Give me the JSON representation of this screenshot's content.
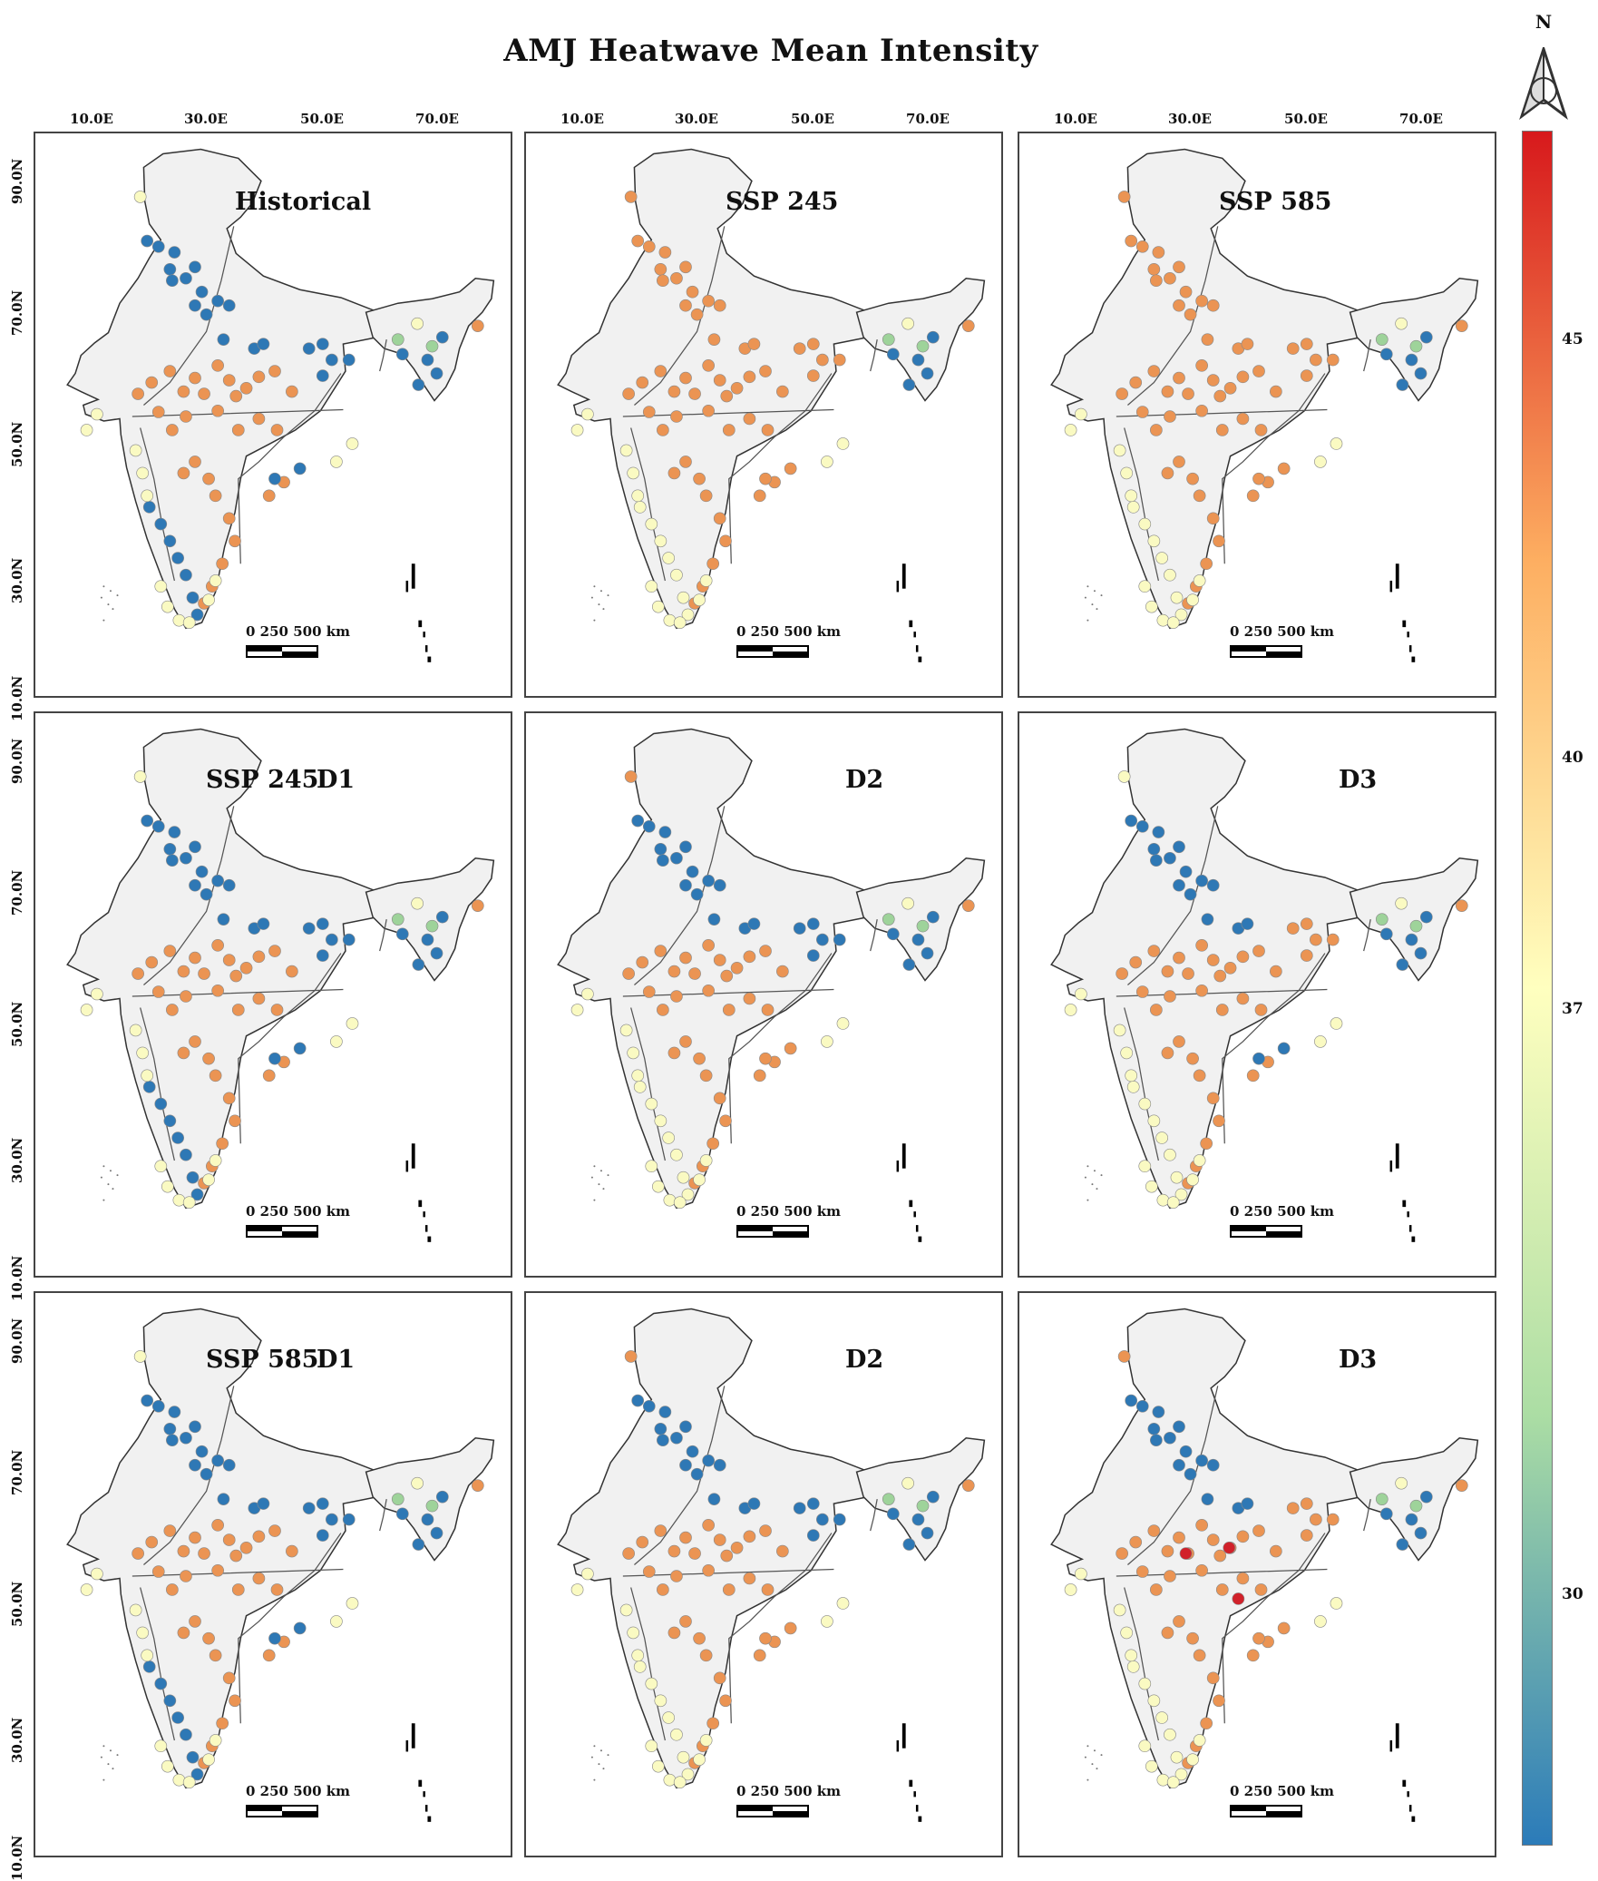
{
  "title": "AMJ Heatwave Mean Intensity",
  "north_arrow": {
    "label": "N"
  },
  "longitude_ticks": [
    "10.0E",
    "30.0E",
    "50.0E",
    "70.0E"
  ],
  "latitude_ticks": [
    "90.0N",
    "70.0N",
    "50.0N",
    "30.0N",
    "10.0N"
  ],
  "scale_bar": {
    "text": "0   250  500 km"
  },
  "colorbar": {
    "tick_labels": [
      "45",
      "40",
      "37",
      "30"
    ],
    "tick_values": [
      45,
      40,
      37,
      30
    ],
    "range": [
      27,
      47.5
    ],
    "colors": [
      "#2b7bb9",
      "#abdda4",
      "#ffffbf",
      "#fdae61",
      "#d7191c"
    ]
  },
  "colors": {
    "blue": "#2e78b5",
    "green": "#9ed39a",
    "yellow": "#fafac2",
    "orange": "#eb9453",
    "red": "#d1212a",
    "land": "#f1f1f1"
  },
  "panels": [
    {
      "label": "Historical",
      "label2": "",
      "variant": "hist"
    },
    {
      "label": "SSP 245",
      "label2": "",
      "variant": "ssp"
    },
    {
      "label": "SSP 585",
      "label2": "",
      "variant": "ssp"
    },
    {
      "label": "SSP 245",
      "label2": "D1",
      "variant": "d1"
    },
    {
      "label": "D2",
      "label2": "",
      "variant": "d2"
    },
    {
      "label": "D3",
      "label2": "",
      "variant": "d3"
    },
    {
      "label": "SSP 585",
      "label2": "D1",
      "variant": "d1"
    },
    {
      "label": "D2",
      "label2": "",
      "variant": "d2"
    },
    {
      "label": "D3",
      "label2": "",
      "variant": "d3r"
    }
  ]
}
